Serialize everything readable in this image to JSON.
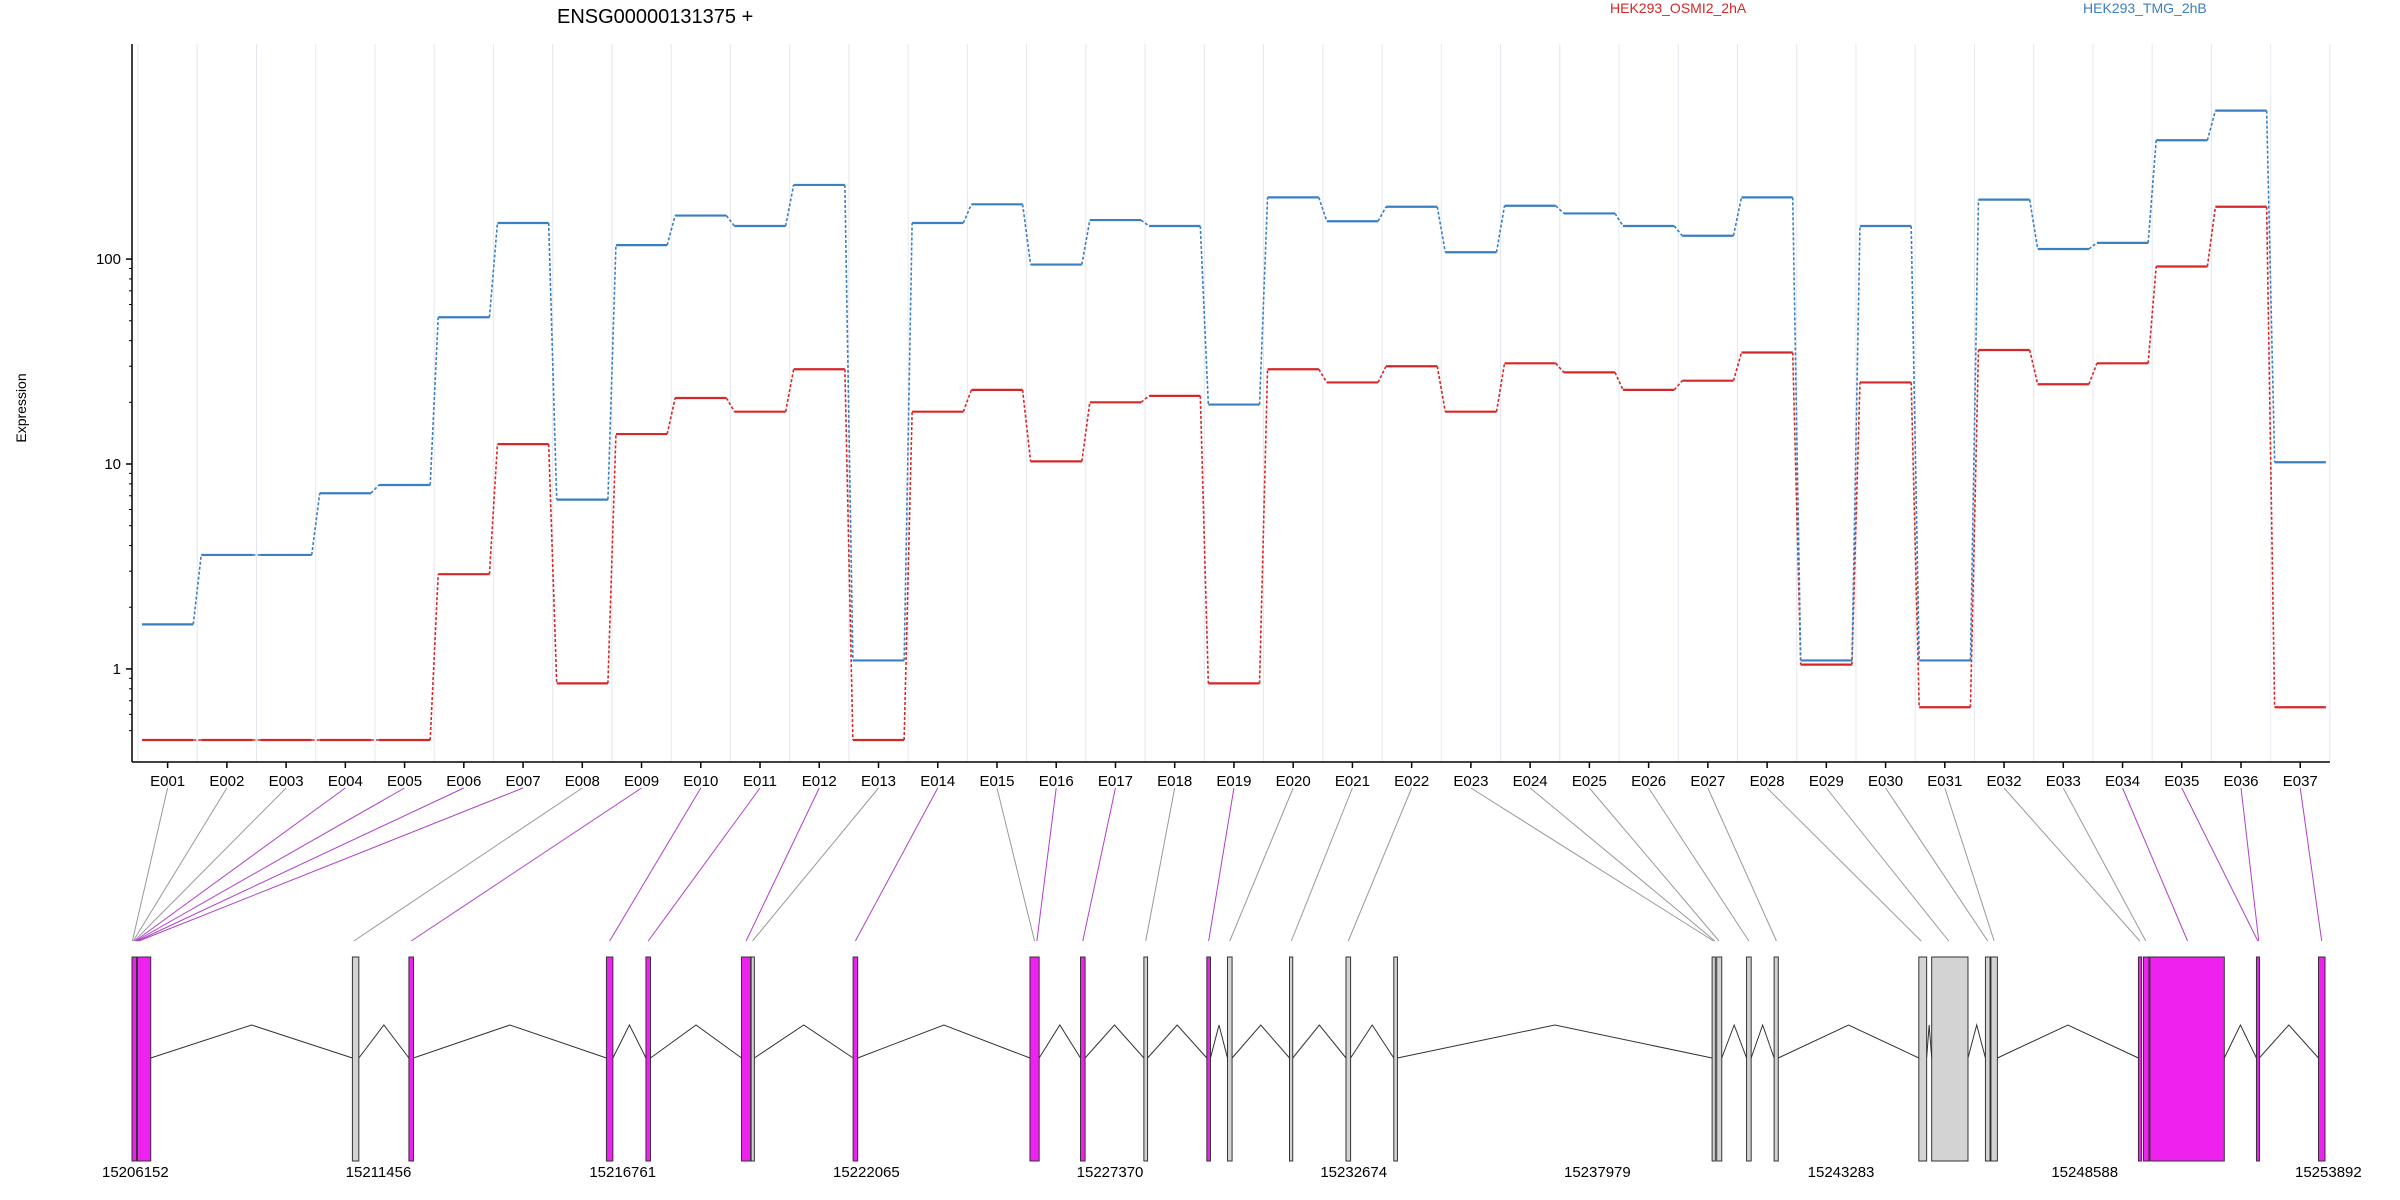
{
  "chart_data": {
    "type": "line",
    "title": "ENSG00000131375 +",
    "ylabel": "Expression",
    "y_scale": "log",
    "ylim": [
      0.45,
      800
    ],
    "y_ticks": [
      {
        "value": 1,
        "label": "1"
      },
      {
        "value": 10,
        "label": "10"
      },
      {
        "value": 100,
        "label": "100"
      }
    ],
    "grid": true,
    "legend_position": "top",
    "categories": [
      "E001",
      "E002",
      "E003",
      "E004",
      "E005",
      "E006",
      "E007",
      "E008",
      "E009",
      "E010",
      "E011",
      "E012",
      "E013",
      "E014",
      "E015",
      "E016",
      "E017",
      "E018",
      "E019",
      "E020",
      "E021",
      "E022",
      "E023",
      "E024",
      "E025",
      "E026",
      "E027",
      "E028",
      "E029",
      "E030",
      "E031",
      "E032",
      "E033",
      "E034",
      "E035",
      "E036",
      "E037"
    ],
    "series": [
      {
        "name": "HEK293_OSMI2_2hA",
        "color": "#d62728",
        "values": [
          0.45,
          0.45,
          0.45,
          0.45,
          0.45,
          2.9,
          12.5,
          0.85,
          14,
          21,
          18,
          29,
          0.45,
          18,
          23,
          10.3,
          20,
          21.5,
          0.85,
          29,
          25,
          30,
          18,
          31,
          28,
          23,
          25.5,
          35,
          1.05,
          25,
          0.65,
          36,
          24.5,
          31,
          92,
          180,
          0.65
        ]
      },
      {
        "name": "HEK293_TMG_2hB",
        "color": "#3a7fc1",
        "values": [
          1.65,
          3.6,
          3.6,
          7.2,
          7.9,
          52,
          150,
          6.7,
          117,
          163,
          145,
          230,
          1.1,
          150,
          185,
          94,
          155,
          145,
          19.5,
          200,
          153,
          180,
          108,
          182,
          167,
          145,
          130,
          200,
          1.1,
          145,
          1.1,
          195,
          112,
          120,
          380,
          530,
          10.2
        ]
      }
    ],
    "genome_axis": {
      "tick_labels": [
        "15206152",
        "15211456",
        "15216761",
        "15222065",
        "15227370",
        "15232674",
        "15237979",
        "15243283",
        "15248588",
        "15253892"
      ]
    }
  },
  "colors": {
    "highlight_exon": "#ee22ee",
    "plain_exon": "#d3d3d3",
    "grid": "#e6e6f0"
  }
}
